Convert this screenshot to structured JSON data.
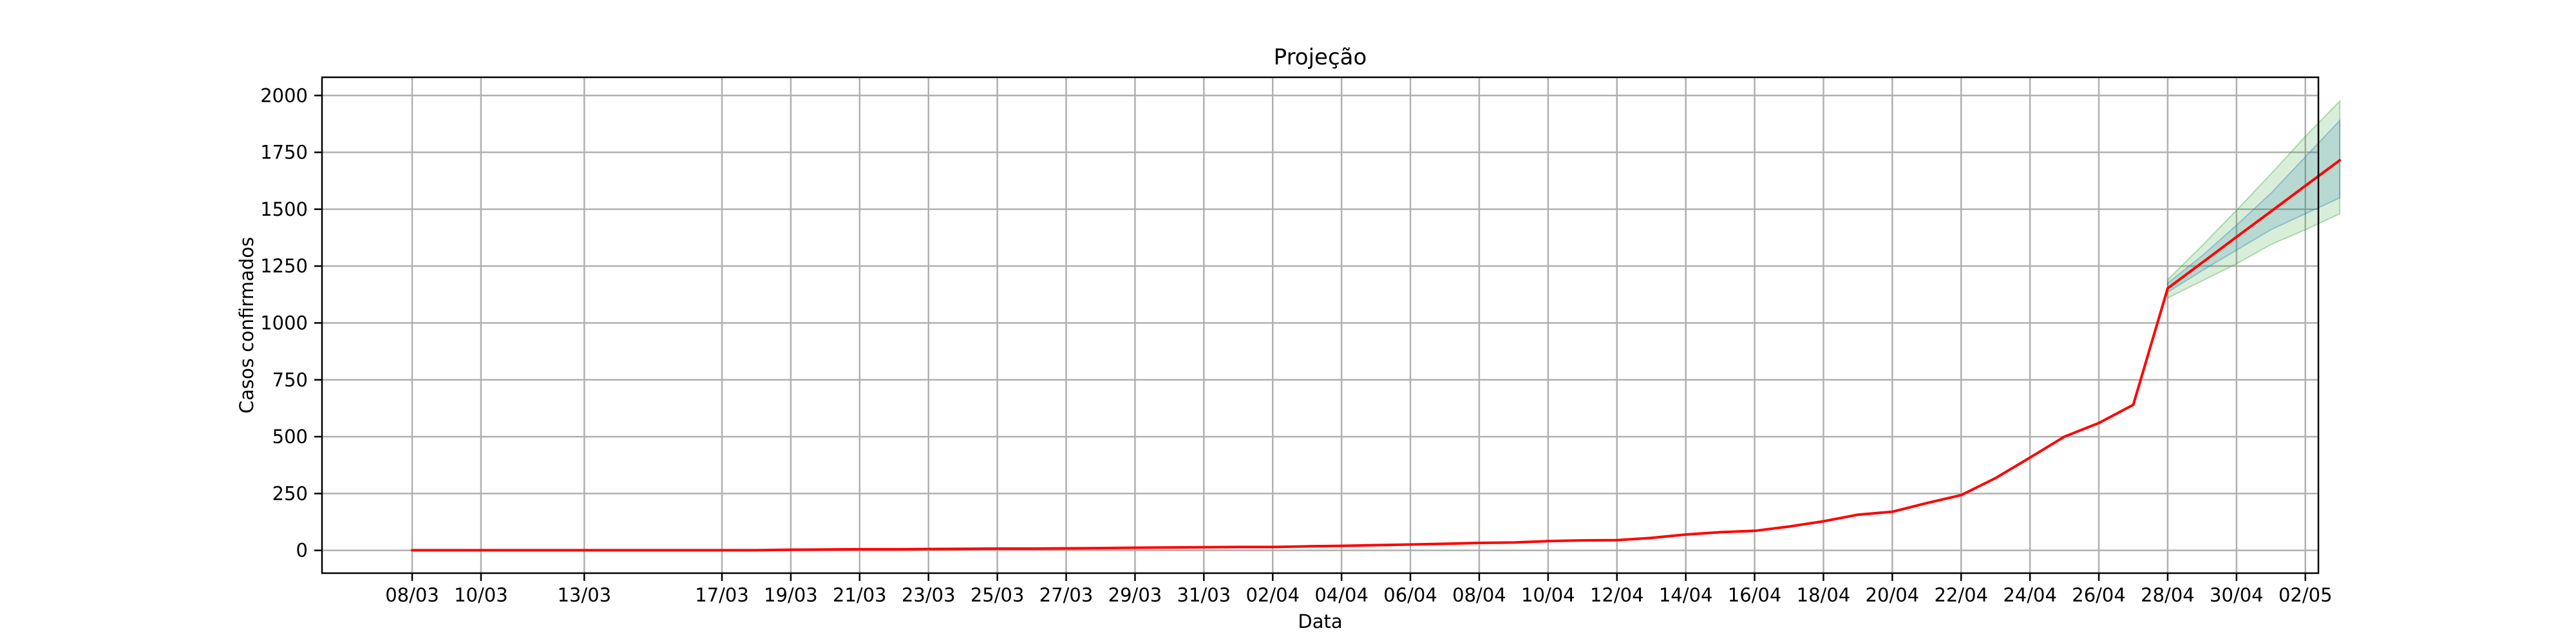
{
  "chart_data": {
    "type": "line",
    "title": "Projeção",
    "xlabel": "Data",
    "ylabel": "Casos confirmados",
    "x_ticks": [
      "08/03",
      "10/03",
      "13/03",
      "17/03",
      "19/03",
      "21/03",
      "23/03",
      "25/03",
      "27/03",
      "29/03",
      "31/03",
      "02/04",
      "04/04",
      "06/04",
      "08/04",
      "10/04",
      "12/04",
      "14/04",
      "16/04",
      "18/04",
      "20/04",
      "22/04",
      "24/04",
      "26/04",
      "28/04",
      "30/04",
      "02/05"
    ],
    "y_ticks": [
      0,
      250,
      500,
      750,
      1000,
      1250,
      1500,
      1750,
      2000
    ],
    "ylim": [
      -100,
      2080
    ],
    "grid": true,
    "series": [
      {
        "color": "#ff0000",
        "x": [
          "08/03",
          "10/03",
          "13/03",
          "17/03",
          "18/03",
          "19/03",
          "20/03",
          "21/03",
          "22/03",
          "23/03",
          "24/03",
          "25/03",
          "26/03",
          "27/03",
          "28/03",
          "29/03",
          "30/03",
          "31/03",
          "01/04",
          "02/04",
          "03/04",
          "04/04",
          "05/04",
          "06/04",
          "07/04",
          "08/04",
          "09/04",
          "10/04",
          "11/04",
          "12/04",
          "13/04",
          "14/04",
          "15/04",
          "16/04",
          "17/04",
          "18/04",
          "19/04",
          "20/04",
          "21/04",
          "22/04",
          "23/04",
          "24/04",
          "25/04",
          "26/04",
          "27/04",
          "28/04",
          "29/04",
          "30/04",
          "01/05",
          "02/05",
          "03/05"
        ],
        "y": [
          1,
          1,
          1,
          1,
          1,
          3,
          4,
          5,
          5,
          6,
          7,
          8,
          8,
          9,
          10,
          12,
          13,
          14,
          15,
          15,
          18,
          20,
          23,
          26,
          29,
          33,
          35,
          41,
          44,
          45,
          55,
          70,
          80,
          86,
          105,
          128,
          157,
          170,
          208,
          243,
          318,
          408,
          500,
          560,
          640,
          1152,
          1265,
          1378,
          1490,
          1603,
          1715
        ]
      }
    ],
    "bands": [
      {
        "color": "#2ca02c",
        "x": [
          "28/04",
          "29/04",
          "30/04",
          "01/05",
          "02/05",
          "03/05"
        ],
        "lower": [
          1110,
          1185,
          1260,
          1345,
          1410,
          1480
        ],
        "upper": [
          1190,
          1340,
          1495,
          1655,
          1820,
          1975
        ]
      },
      {
        "color": "#1f77b4",
        "x": [
          "28/04",
          "29/04",
          "30/04",
          "01/05",
          "02/05",
          "03/05"
        ],
        "lower": [
          1135,
          1230,
          1320,
          1410,
          1480,
          1550
        ],
        "upper": [
          1175,
          1295,
          1430,
          1570,
          1730,
          1890
        ]
      }
    ]
  }
}
